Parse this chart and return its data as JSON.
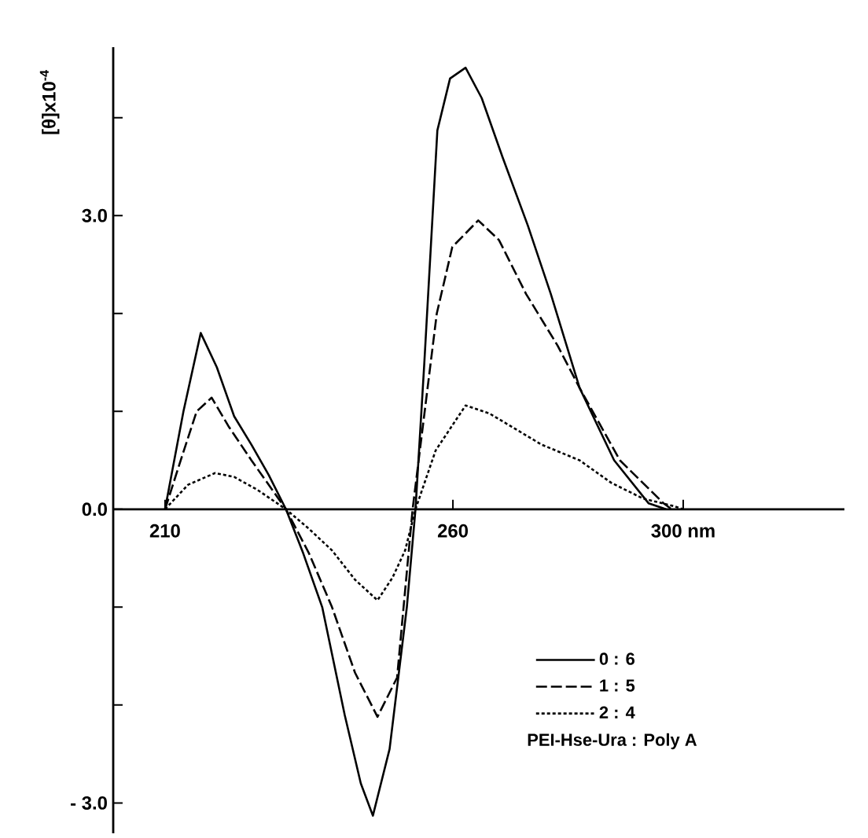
{
  "chart_data": {
    "type": "line",
    "ylabel": "[θ]x10$^{-4}$",
    "legend_title": "PEI-Hse-Ura : Poly A",
    "legend": "bottom right",
    "xlim": [
      201,
      328
    ],
    "ylim": [
      -3.31,
      4.72
    ],
    "xticks": [
      210,
      260,
      {
        "value": 300,
        "label": "300 nm"
      }
    ],
    "yticks": [
      {
        "value": -3,
        "label": "- 3.0"
      },
      {
        "value": -2,
        "label": null
      },
      {
        "value": -1,
        "label": null
      },
      {
        "value": 0,
        "label": "0.0"
      },
      {
        "value": 1,
        "label": null
      },
      {
        "value": 2,
        "label": null
      },
      {
        "value": 3,
        "label": "3.0"
      },
      {
        "value": 4,
        "label": null
      }
    ],
    "series": [
      {
        "name": "0 : 6",
        "color": "#000000",
        "line_style": "solid",
        "x": [
          210,
          213.2,
          216.2,
          219,
          222,
          225,
          228,
          231,
          234,
          237.3,
          241.2,
          244,
          246.1,
          249,
          252,
          253.5,
          255,
          257.3,
          259.5,
          262.2,
          265,
          268.6,
          273,
          277,
          282,
          288,
          294,
          297
        ],
        "values": [
          0,
          1.0,
          1.8,
          1.45,
          0.95,
          0.66,
          0.35,
          0,
          -0.45,
          -1.0,
          -2.1,
          -2.8,
          -3.13,
          -2.45,
          -1.0,
          0,
          1.46,
          3.87,
          4.4,
          4.51,
          4.2,
          3.6,
          2.9,
          2.2,
          1.24,
          0.5,
          0.06,
          0
        ]
      },
      {
        "name": "1 : 5",
        "color": "#000000",
        "line_style": "dashed",
        "x": [
          210,
          213,
          215.5,
          218.1,
          221,
          225,
          228,
          231,
          235,
          239,
          243,
          246.9,
          250.3,
          253,
          257.2,
          259.9,
          264.4,
          268,
          272.7,
          278.2,
          282,
          289,
          296.6,
          298
        ],
        "values": [
          0,
          0.55,
          1.0,
          1.14,
          0.85,
          0.5,
          0.25,
          0,
          -0.45,
          -1.0,
          -1.67,
          -2.12,
          -1.72,
          0,
          2.0,
          2.68,
          2.95,
          2.75,
          2.2,
          1.67,
          1.24,
          0.5,
          0.06,
          0
        ]
      },
      {
        "name": "2 : 4",
        "color": "#000000",
        "line_style": "dotted",
        "x": [
          210,
          214,
          218.7,
          222,
          226,
          231,
          235,
          239,
          243,
          246.9,
          249.5,
          251.7,
          253.5,
          257,
          262.2,
          266.3,
          270,
          275.4,
          282,
          287.5,
          293,
          298.5,
          300
        ],
        "values": [
          0,
          0.25,
          0.37,
          0.33,
          0.2,
          0,
          -0.2,
          -0.42,
          -0.72,
          -0.93,
          -0.7,
          -0.42,
          0,
          0.6,
          1.06,
          0.98,
          0.85,
          0.66,
          0.5,
          0.27,
          0.11,
          0.03,
          0
        ]
      }
    ]
  }
}
